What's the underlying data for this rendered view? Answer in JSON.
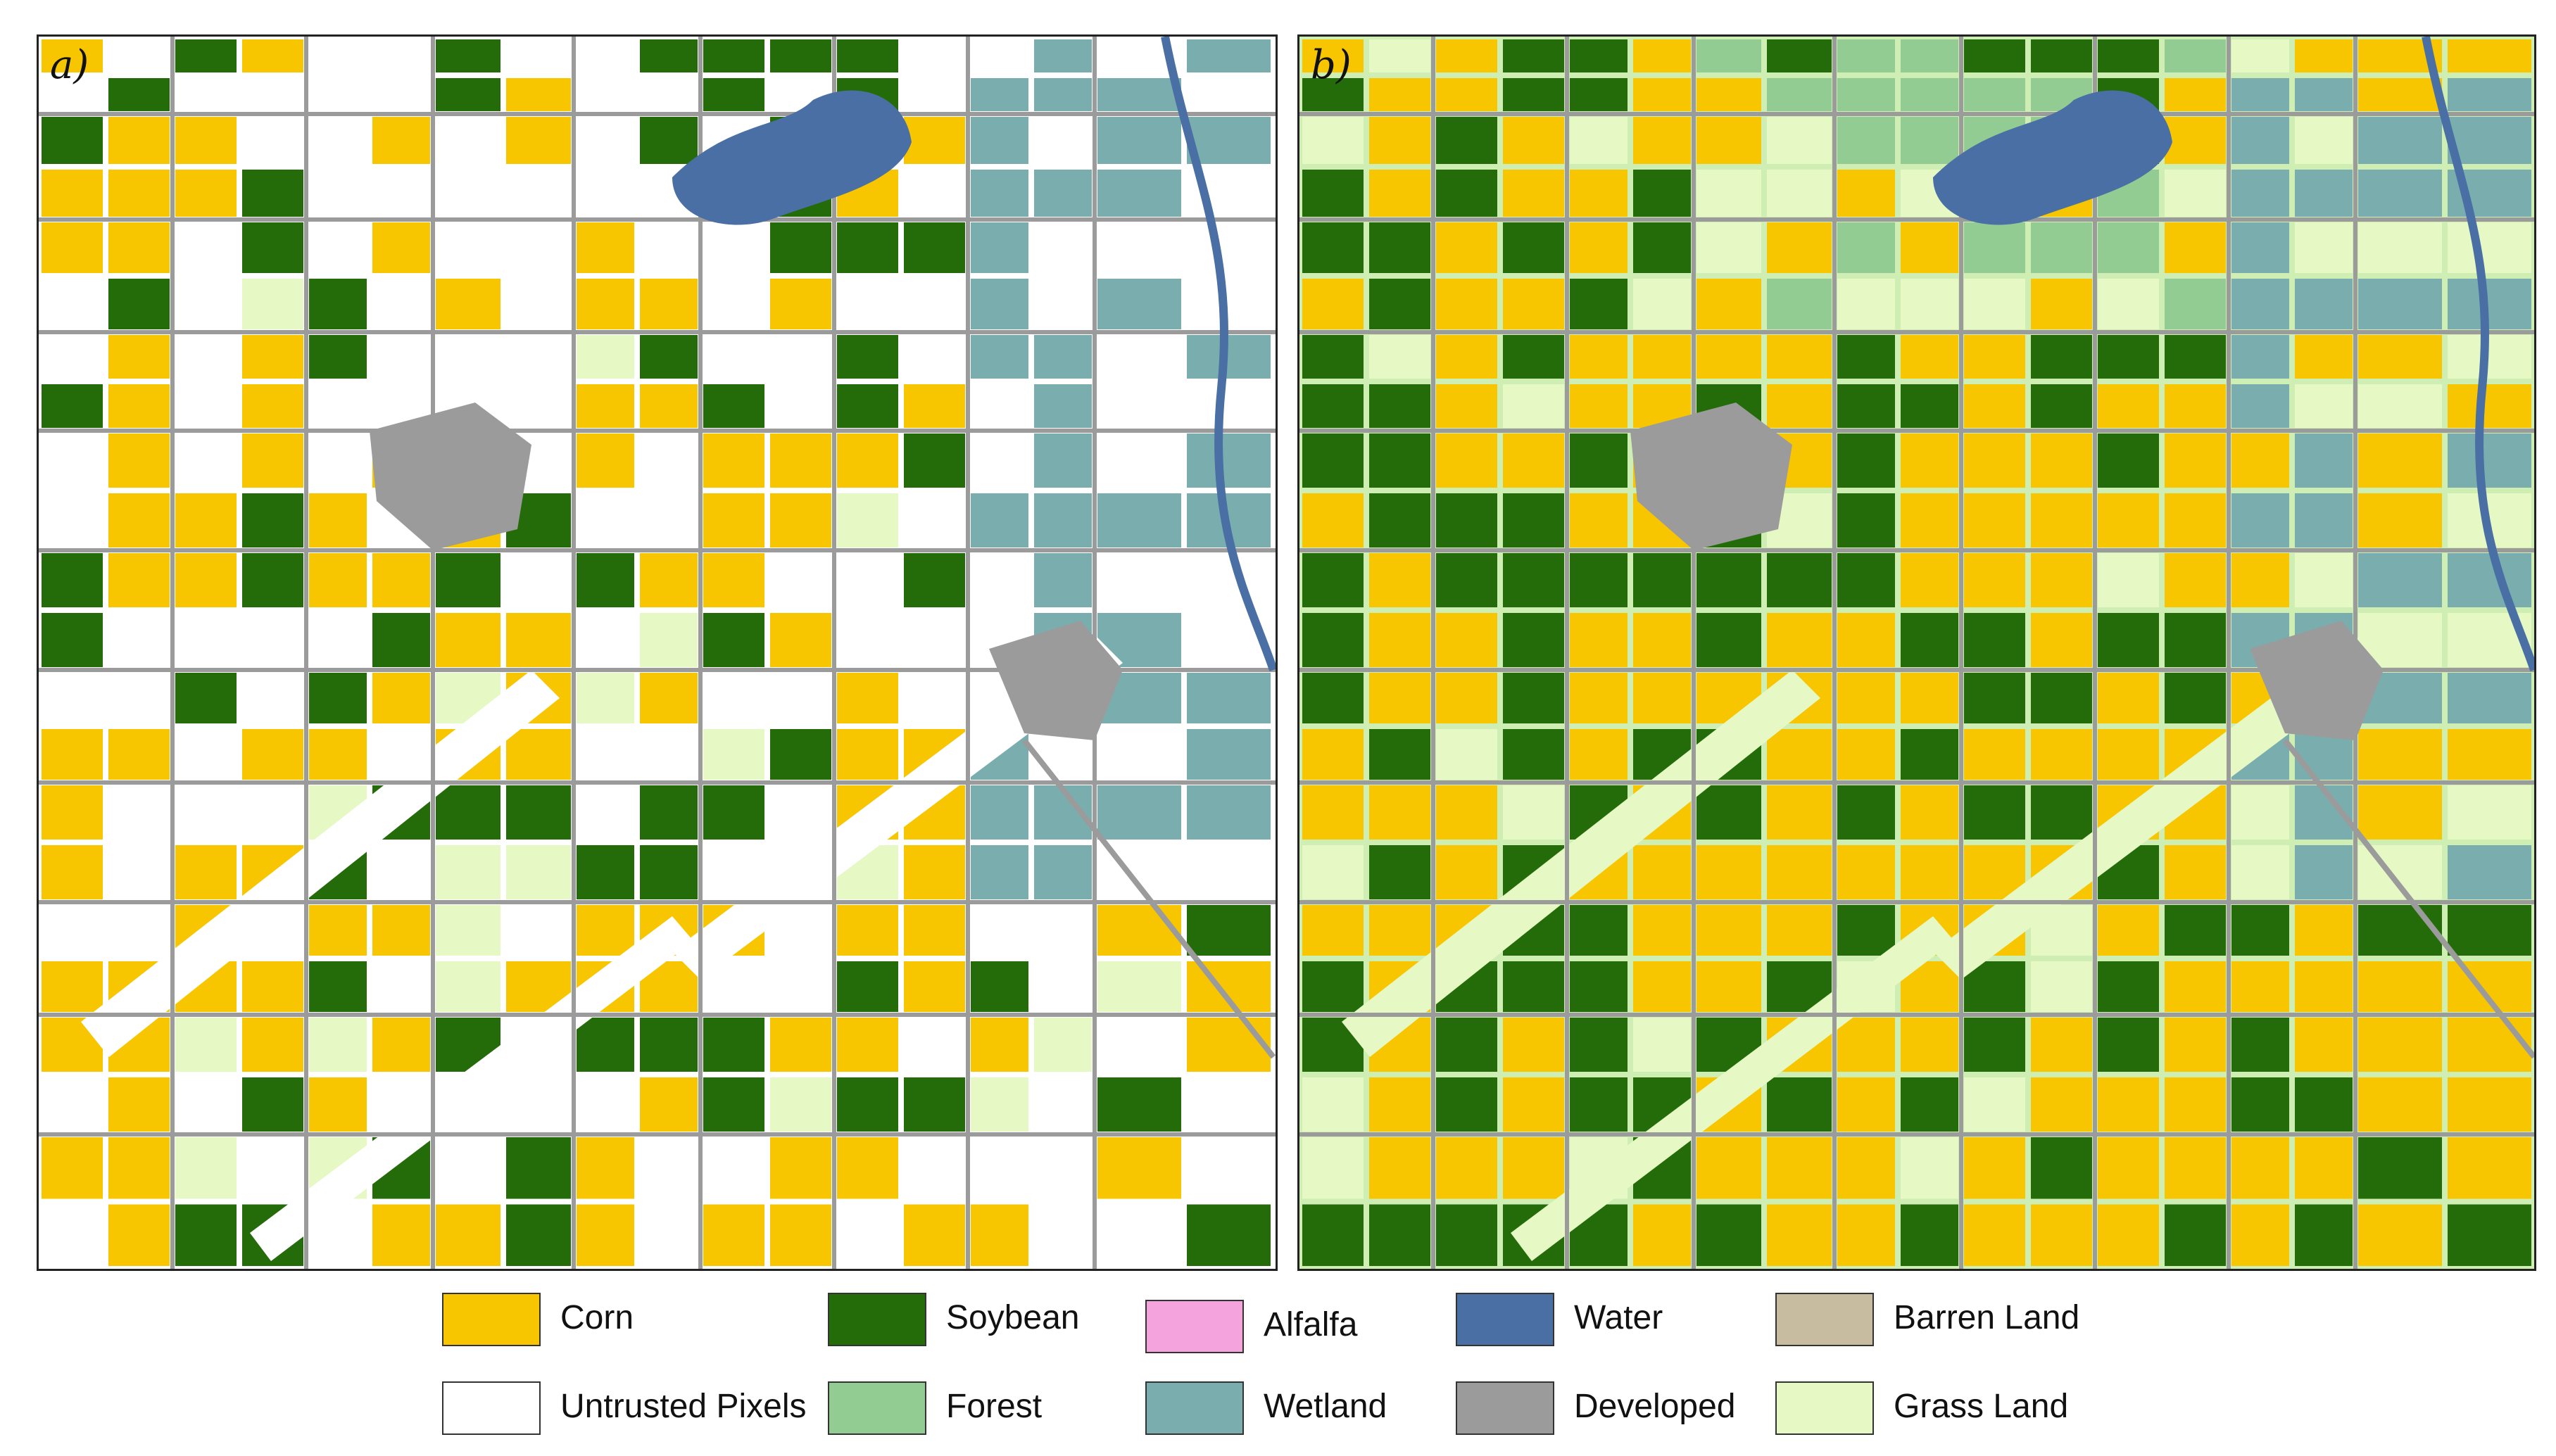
{
  "panels": [
    {
      "label": "a)"
    },
    {
      "label": "b)"
    }
  ],
  "legend": [
    {
      "label": "Corn",
      "color": "#f7c600"
    },
    {
      "label": "Soybean",
      "color": "#246b0a"
    },
    {
      "label": "Alfalfa",
      "color": "#f4a3dd"
    },
    {
      "label": "Water",
      "color": "#4a6fa5"
    },
    {
      "label": "Barren Land",
      "color": "#c8bca0"
    },
    {
      "label": "Untrusted Pixels",
      "color": "#ffffff"
    },
    {
      "label": "Forest",
      "color": "#93cc93"
    },
    {
      "label": "Wetland",
      "color": "#7aaeae"
    },
    {
      "label": "Developed",
      "color": "#9b9b9b"
    },
    {
      "label": "Grass Land",
      "color": "#e6f8c4"
    }
  ]
}
